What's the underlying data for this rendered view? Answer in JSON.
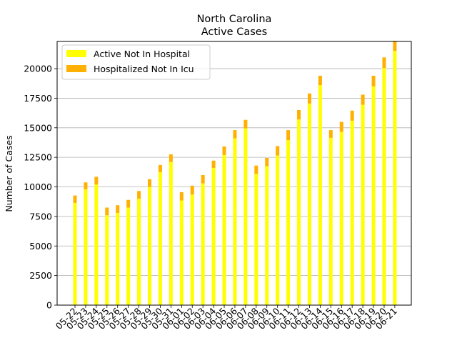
{
  "chart_data": {
    "type": "bar",
    "stacked": true,
    "title": "North Carolina",
    "subtitle": "Active Cases",
    "xlabel": "",
    "ylabel": "Number of Cases",
    "ylim": [
      0,
      22300
    ],
    "yticks": [
      0,
      2500,
      5000,
      7500,
      10000,
      12500,
      15000,
      17500,
      20000
    ],
    "grid": "horizontal",
    "legend_position": "top-left",
    "categories": [
      "05-22",
      "05-23",
      "05-24",
      "05-25",
      "05-26",
      "05-27",
      "05-28",
      "05-29",
      "05-30",
      "05-31",
      "06-01",
      "06-02",
      "06-03",
      "06-04",
      "06-05",
      "06-06",
      "06-07",
      "06-08",
      "06-09",
      "06-10",
      "06-11",
      "06-12",
      "06-13",
      "06-14",
      "06-15",
      "06-16",
      "06-17",
      "06-18",
      "06-19",
      "06-20",
      "06-21"
    ],
    "series": [
      {
        "name": "Active Not In Hospital",
        "color": "#ffff00",
        "values": [
          8650,
          9800,
          10200,
          7600,
          7800,
          8250,
          9000,
          10000,
          11250,
          12100,
          8850,
          9350,
          10300,
          11600,
          12700,
          14100,
          14950,
          11100,
          11750,
          12650,
          13950,
          15700,
          17050,
          18600,
          14150,
          14650,
          15600,
          16950,
          18500,
          20050,
          21500
        ]
      },
      {
        "name": "Hospitalized Not In Icu",
        "color": "#ffb000",
        "values": [
          620,
          580,
          650,
          650,
          650,
          650,
          650,
          650,
          600,
          650,
          700,
          750,
          700,
          620,
          720,
          700,
          720,
          700,
          700,
          800,
          850,
          800,
          850,
          800,
          650,
          850,
          850,
          850,
          900,
          900,
          850
        ]
      }
    ]
  }
}
